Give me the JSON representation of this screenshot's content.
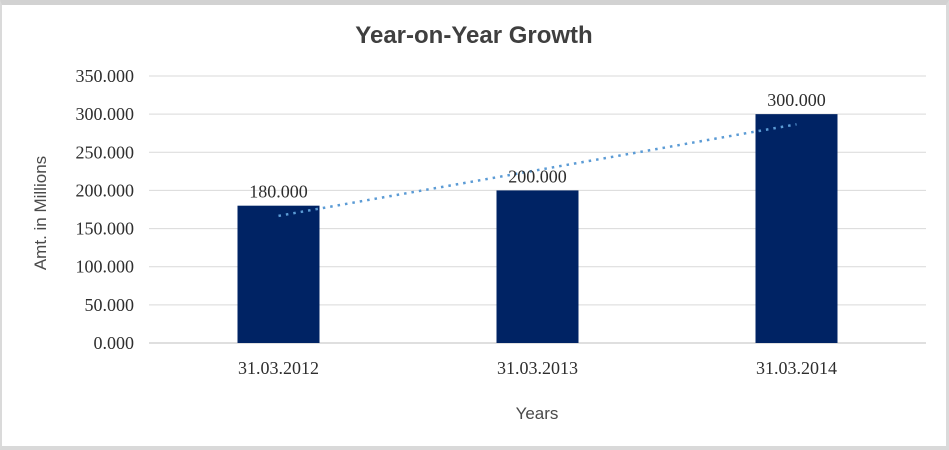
{
  "window": {
    "background": "#ffffff",
    "frame_border_color": "#d9d9d9"
  },
  "chart_data": {
    "type": "bar",
    "title": "Year-on-Year Growth",
    "xlabel": "Years",
    "ylabel": "Amt. in Millions",
    "categories": [
      "31.03.2012",
      "31.03.2013",
      "31.03.2014"
    ],
    "values": [
      180,
      200,
      300
    ],
    "data_labels": [
      "180.000",
      "200.000",
      "300.000"
    ],
    "y_tick_values": [
      0,
      50,
      100,
      150,
      200,
      250,
      300,
      350
    ],
    "y_tick_labels": [
      "0.000",
      "50.000",
      "100.000",
      "150.000",
      "200.000",
      "250.000",
      "300.000",
      "350.000"
    ],
    "ylim": [
      0,
      350
    ],
    "grid": true,
    "legend": "none",
    "bar_color": "#002364",
    "trendline": {
      "type": "linear",
      "style": "dotted",
      "color": "#5B9BD5"
    },
    "colors": {
      "gridline": "#d9d9d9",
      "axis_line": "#bfbfbf",
      "title_text": "#3f3f3f",
      "axis_title_text": "#4a4a4a",
      "tick_label_text": "#2e2e2e"
    }
  }
}
